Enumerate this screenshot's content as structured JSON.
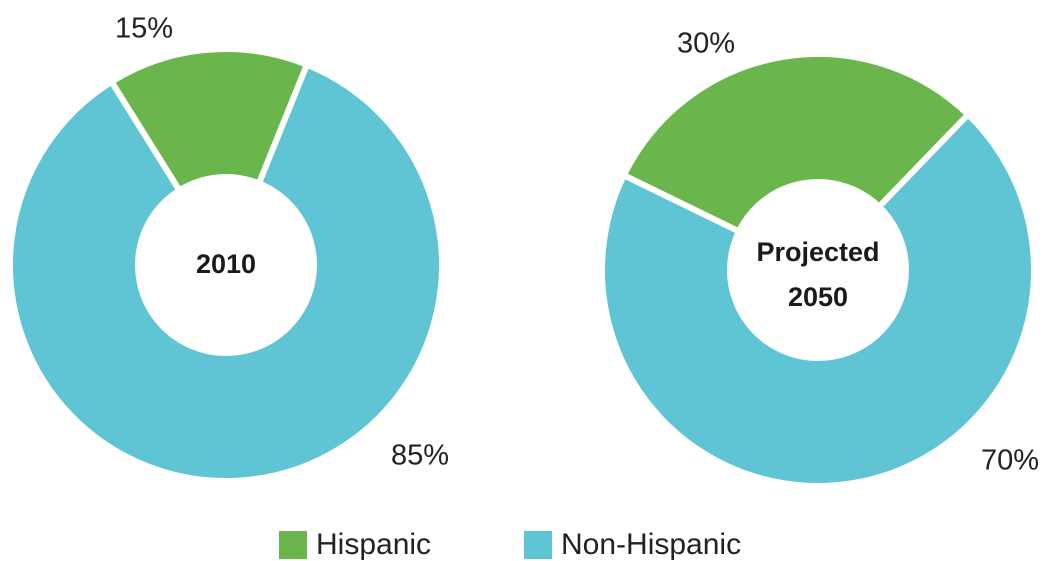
{
  "chart_data": {
    "type": "pie",
    "style": "donut",
    "legend_position": "bottom-center",
    "colors": {
      "Hispanic": "#6ab64d",
      "Non-Hispanic": "#5fc4d4"
    },
    "legend": [
      {
        "label": "Hispanic",
        "color": "#6ab64d"
      },
      {
        "label": "Non-Hispanic",
        "color": "#5fc4d4"
      }
    ],
    "charts": [
      {
        "center_label": [
          "2010"
        ],
        "slices": [
          {
            "category": "Hispanic",
            "value": 15,
            "label": "15%"
          },
          {
            "category": "Non-Hispanic",
            "value": 85,
            "label": "85%"
          }
        ]
      },
      {
        "center_label": [
          "Projected",
          "2050"
        ],
        "slices": [
          {
            "category": "Hispanic",
            "value": 30,
            "label": "30%"
          },
          {
            "category": "Non-Hispanic",
            "value": 70,
            "label": "70%"
          }
        ]
      }
    ]
  }
}
